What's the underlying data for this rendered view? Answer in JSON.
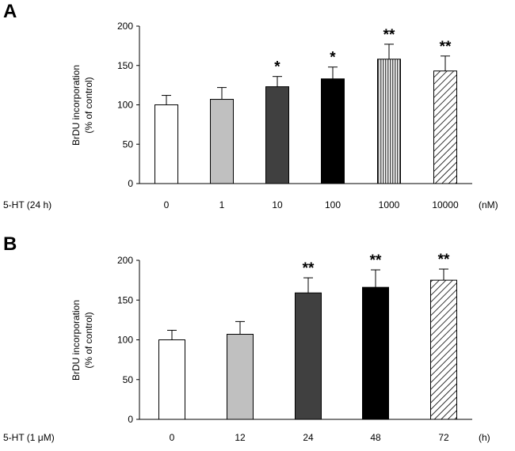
{
  "chart_data": [
    {
      "type": "bar",
      "panel": "A",
      "ylabel_line1": "BrDU incorporation",
      "ylabel_line2": "(% of control)",
      "ylim": [
        0,
        200
      ],
      "yticks": [
        "0",
        "50",
        "100",
        "150",
        "200"
      ],
      "treatment_label": "5-HT  (24 h)",
      "unit_label": "(nM)",
      "categories": [
        "0",
        "1",
        "10",
        "100",
        "1000",
        "10000"
      ],
      "values": [
        100,
        107,
        123,
        133,
        158,
        143
      ],
      "errors": [
        12,
        15,
        13,
        15,
        19,
        19
      ],
      "significance": [
        "",
        "",
        "*",
        "*",
        "**",
        "**"
      ],
      "fills": [
        "#ffffff",
        "#c0c0c0",
        "#404040",
        "#000000",
        "pattern-vertical",
        "pattern-diagonal"
      ]
    },
    {
      "type": "bar",
      "panel": "B",
      "ylabel_line1": "BrDU incorporation",
      "ylabel_line2": "(% of control)",
      "ylim": [
        0,
        200
      ],
      "yticks": [
        "0",
        "50",
        "100",
        "150",
        "200"
      ],
      "treatment_label": "5-HT (1 μM)",
      "unit_label": "(h)",
      "categories": [
        "0",
        "12",
        "24",
        "48",
        "72"
      ],
      "values": [
        100,
        107,
        159,
        166,
        175
      ],
      "errors": [
        12,
        16,
        19,
        22,
        14
      ],
      "significance": [
        "",
        "",
        "**",
        "**",
        "**"
      ],
      "fills": [
        "#ffffff",
        "#c0c0c0",
        "#404040",
        "#000000",
        "pattern-diagonal"
      ]
    }
  ]
}
